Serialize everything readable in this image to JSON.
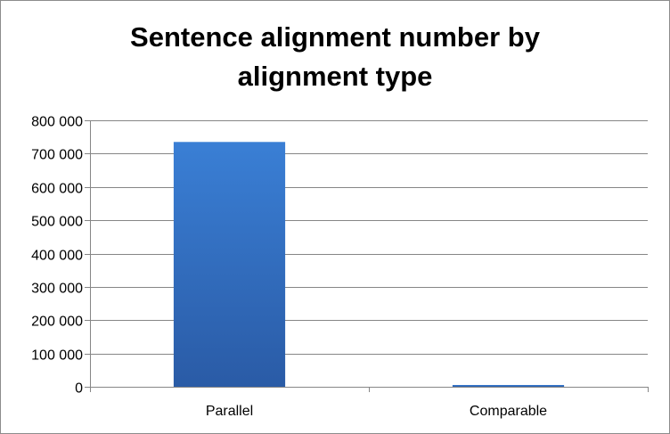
{
  "chart_data": {
    "type": "bar",
    "title_lines": [
      "Sentence alignment number by",
      "alignment type"
    ],
    "categories": [
      "Parallel",
      "Comparable"
    ],
    "values": [
      735000,
      5000
    ],
    "ylim": [
      0,
      800000
    ],
    "yticks": [
      0,
      100000,
      200000,
      300000,
      400000,
      500000,
      600000,
      700000,
      800000
    ],
    "ytick_labels": [
      "0",
      "100 000",
      "200 000",
      "300 000",
      "400 000",
      "500 000",
      "600 000",
      "700 000",
      "800 000"
    ],
    "grid": true,
    "legend": "none",
    "colors": {
      "bar_top": "#3a7fd5",
      "bar_bottom": "#2a5ba6",
      "grid": "#868686",
      "axis": "#868686"
    }
  }
}
